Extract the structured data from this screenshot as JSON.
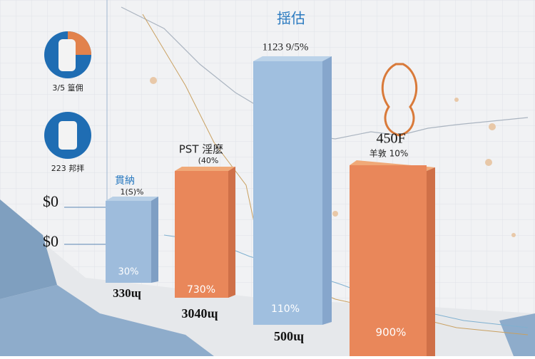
{
  "badges": [
    {
      "label": "3/5 篁佣"
    },
    {
      "label": "223 邦拝"
    }
  ],
  "axis_labels": [
    "$0",
    "$0"
  ],
  "bars": [
    {
      "top_label": "貫納",
      "sub_label": "1(S)%",
      "inner_label": "30%",
      "base_label": "330ɰ"
    },
    {
      "top_label": "PST 淫麽",
      "sub_label": "(40%",
      "inner_label": "730%",
      "base_label": "3040ɰ"
    },
    {
      "top_label": "揺估",
      "sub_label": "1123  9/5%",
      "inner_label": "110%",
      "base_label": "500ɰ"
    },
    {
      "top_label": "450F",
      "sub_label": "羊敦  10%",
      "inner_label": "900%"
    }
  ]
}
